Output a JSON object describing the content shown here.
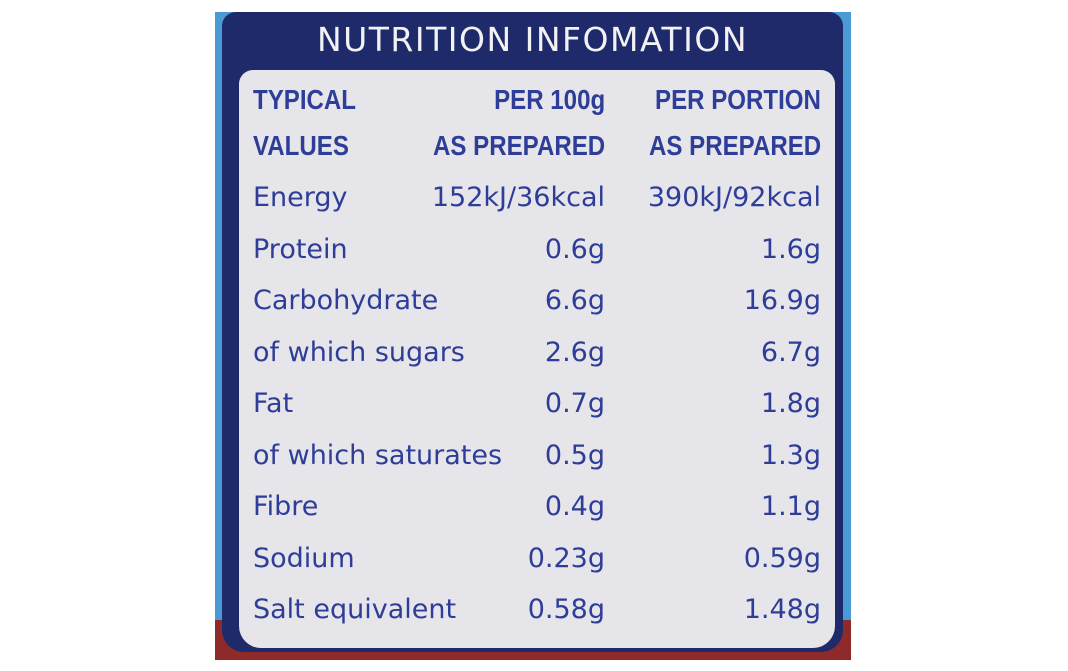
{
  "title": "NUTRITION INFOMATION",
  "header": [
    {
      "label": "TYPICAL",
      "per_100g": "PER 100g",
      "per_portion": "PER PORTION"
    },
    {
      "label": "VALUES",
      "per_100g": "AS PREPARED",
      "per_portion": "AS PREPARED"
    }
  ],
  "rows": [
    {
      "label": "Energy",
      "per_100g": "152kJ/36kcal",
      "per_portion": "390kJ/92kcal"
    },
    {
      "label": "Protein",
      "per_100g": "0.6g",
      "per_portion": "1.6g"
    },
    {
      "label": "Carbohydrate",
      "per_100g": "6.6g",
      "per_portion": "16.9g"
    },
    {
      "label": "of which sugars",
      "per_100g": "2.6g",
      "per_portion": "6.7g"
    },
    {
      "label": "Fat",
      "per_100g": "0.7g",
      "per_portion": "1.8g"
    },
    {
      "label": "of which saturates",
      "per_100g": "0.5g",
      "per_portion": "1.3g"
    },
    {
      "label": "Fibre",
      "per_100g": "0.4g",
      "per_portion": "1.1g"
    },
    {
      "label": "Sodium",
      "per_100g": "0.23g",
      "per_portion": "0.59g"
    },
    {
      "label": "Salt equivalent",
      "per_100g": "0.58g",
      "per_portion": "1.48g"
    }
  ],
  "colors": {
    "navy": "#1f2a6a",
    "text": "#2e3d98",
    "panel": "#e6e5ea",
    "side_blue": "#4a9ad6",
    "bottom_red": "#8e2a2a"
  }
}
